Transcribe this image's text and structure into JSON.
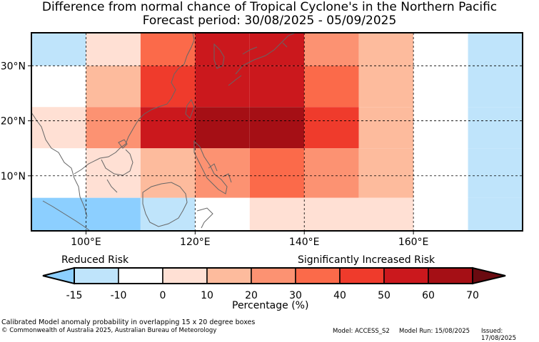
{
  "title_line1": "Difference from normal chance of Tropical Cyclone's in the Northern Pacific",
  "title_line2": "Forecast period: 30/08/2025 - 05/09/2025",
  "map": {
    "lon_range": [
      90,
      180
    ],
    "lat_range": [
      0,
      36
    ],
    "x_ticks": [
      {
        "lon": 100,
        "label": "100°E"
      },
      {
        "lon": 120,
        "label": "120°E"
      },
      {
        "lon": 140,
        "label": "140°E"
      },
      {
        "lon": 160,
        "label": "160°E"
      }
    ],
    "y_ticks": [
      {
        "lat": 10,
        "label": "10°N"
      },
      {
        "lat": 20,
        "label": "20°N"
      },
      {
        "lat": 30,
        "label": "30°N"
      }
    ],
    "grid_lines": "dashed",
    "cells": [
      {
        "lon0": 90,
        "lon1": 100,
        "lat0": 30,
        "lat1": 36,
        "bin": 1
      },
      {
        "lon0": 100,
        "lon1": 110,
        "lat0": 30,
        "lat1": 36,
        "bin": 3
      },
      {
        "lon0": 110,
        "lon1": 120,
        "lat0": 30,
        "lat1": 36,
        "bin": 6
      },
      {
        "lon0": 120,
        "lon1": 130,
        "lat0": 30,
        "lat1": 36,
        "bin": 8
      },
      {
        "lon0": 130,
        "lon1": 140,
        "lat0": 30,
        "lat1": 36,
        "bin": 8
      },
      {
        "lon0": 140,
        "lon1": 150,
        "lat0": 30,
        "lat1": 36,
        "bin": 5
      },
      {
        "lon0": 150,
        "lon1": 160,
        "lat0": 30,
        "lat1": 36,
        "bin": 4
      },
      {
        "lon0": 160,
        "lon1": 170,
        "lat0": 30,
        "lat1": 36,
        "bin": 2
      },
      {
        "lon0": 170,
        "lon1": 180,
        "lat0": 30,
        "lat1": 36,
        "bin": 1
      },
      {
        "lon0": 90,
        "lon1": 100,
        "lat0": 22.5,
        "lat1": 30,
        "bin": 2
      },
      {
        "lon0": 100,
        "lon1": 110,
        "lat0": 22.5,
        "lat1": 30,
        "bin": 4
      },
      {
        "lon0": 110,
        "lon1": 120,
        "lat0": 22.5,
        "lat1": 30,
        "bin": 7
      },
      {
        "lon0": 120,
        "lon1": 130,
        "lat0": 22.5,
        "lat1": 30,
        "bin": 8
      },
      {
        "lon0": 130,
        "lon1": 140,
        "lat0": 22.5,
        "lat1": 30,
        "bin": 8
      },
      {
        "lon0": 140,
        "lon1": 150,
        "lat0": 22.5,
        "lat1": 30,
        "bin": 6
      },
      {
        "lon0": 150,
        "lon1": 160,
        "lat0": 22.5,
        "lat1": 30,
        "bin": 4
      },
      {
        "lon0": 160,
        "lon1": 170,
        "lat0": 22.5,
        "lat1": 30,
        "bin": 2
      },
      {
        "lon0": 170,
        "lon1": 180,
        "lat0": 22.5,
        "lat1": 30,
        "bin": 1
      },
      {
        "lon0": 90,
        "lon1": 100,
        "lat0": 15,
        "lat1": 22.5,
        "bin": 3
      },
      {
        "lon0": 100,
        "lon1": 110,
        "lat0": 15,
        "lat1": 22.5,
        "bin": 5
      },
      {
        "lon0": 110,
        "lon1": 120,
        "lat0": 15,
        "lat1": 22.5,
        "bin": 8
      },
      {
        "lon0": 120,
        "lon1": 130,
        "lat0": 15,
        "lat1": 22.5,
        "bin": 9
      },
      {
        "lon0": 130,
        "lon1": 140,
        "lat0": 15,
        "lat1": 22.5,
        "bin": 9
      },
      {
        "lon0": 140,
        "lon1": 150,
        "lat0": 15,
        "lat1": 22.5,
        "bin": 7
      },
      {
        "lon0": 150,
        "lon1": 160,
        "lat0": 15,
        "lat1": 22.5,
        "bin": 4
      },
      {
        "lon0": 160,
        "lon1": 170,
        "lat0": 15,
        "lat1": 22.5,
        "bin": 2
      },
      {
        "lon0": 170,
        "lon1": 180,
        "lat0": 15,
        "lat1": 22.5,
        "bin": 1
      },
      {
        "lon0": 90,
        "lon1": 100,
        "lat0": 6,
        "lat1": 15,
        "bin": 2
      },
      {
        "lon0": 100,
        "lon1": 110,
        "lat0": 6,
        "lat1": 15,
        "bin": 3
      },
      {
        "lon0": 110,
        "lon1": 120,
        "lat0": 6,
        "lat1": 15,
        "bin": 4
      },
      {
        "lon0": 120,
        "lon1": 130,
        "lat0": 6,
        "lat1": 15,
        "bin": 5
      },
      {
        "lon0": 130,
        "lon1": 140,
        "lat0": 6,
        "lat1": 15,
        "bin": 6
      },
      {
        "lon0": 140,
        "lon1": 150,
        "lat0": 6,
        "lat1": 15,
        "bin": 5
      },
      {
        "lon0": 150,
        "lon1": 160,
        "lat0": 6,
        "lat1": 15,
        "bin": 4
      },
      {
        "lon0": 160,
        "lon1": 170,
        "lat0": 6,
        "lat1": 15,
        "bin": 2
      },
      {
        "lon0": 170,
        "lon1": 180,
        "lat0": 6,
        "lat1": 15,
        "bin": 1
      },
      {
        "lon0": 90,
        "lon1": 110,
        "lat0": 0,
        "lat1": 6,
        "bin": 0
      },
      {
        "lon0": 110,
        "lon1": 120,
        "lat0": 0,
        "lat1": 6,
        "bin": 1
      },
      {
        "lon0": 120,
        "lon1": 130,
        "lat0": 0,
        "lat1": 6,
        "bin": 2
      },
      {
        "lon0": 130,
        "lon1": 160,
        "lat0": 0,
        "lat1": 6,
        "bin": 3
      },
      {
        "lon0": 160,
        "lon1": 170,
        "lat0": 0,
        "lat1": 6,
        "bin": 2
      },
      {
        "lon0": 170,
        "lon1": 180,
        "lat0": 0,
        "lat1": 6,
        "bin": 1
      }
    ]
  },
  "colorbar": {
    "left_label": "Reduced Risk",
    "right_label": "Significantly Increased Risk",
    "axis_label": "Percentage (%)",
    "ticks": [
      "-15",
      "-10",
      "0",
      "10",
      "20",
      "30",
      "40",
      "50",
      "60",
      "70"
    ],
    "low_extend_color": "#8ccfff",
    "high_extend_color": "#6a0a10",
    "bins": [
      "#8ccfff",
      "#bfe4fb",
      "#ffffff",
      "#ffe0d4",
      "#fdbb9d",
      "#fc9272",
      "#fb6a4a",
      "#ef3b2c",
      "#cb181d",
      "#a50f15"
    ]
  },
  "footer": {
    "note": "Calibrated Model anomaly probability in overlapping 15 x 20 degree boxes",
    "copyright": "© Commonwealth of Australia 2025, Australian Bureau of Meteorology",
    "model": "Model: ACCESS_S2",
    "run": "Model Run: 15/08/2025",
    "issued": "Issued: 17/08/2025"
  }
}
